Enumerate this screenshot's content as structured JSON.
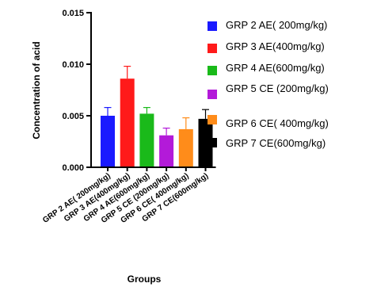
{
  "chart_data": {
    "type": "bar",
    "title": "",
    "xlabel": "Groups",
    "ylabel": "Concentration of acid",
    "ylim": [
      0,
      0.015
    ],
    "yticks": [
      "0.000",
      "0.005",
      "0.010",
      "0.015"
    ],
    "ytick_values": [
      0,
      0.005,
      0.01,
      0.015
    ],
    "categories": [
      "GRP 2 AE( 200mg/kg)",
      "GRP 3 AE(400mg/kg)",
      "GRP 4 AE(600mg/kg)",
      "GRP 5  CE (200mg/kg)",
      "GRP 6 CE( 400mg/kg)",
      "GRP 7 CE(600mg/kg)"
    ],
    "values": [
      0.005,
      0.0086,
      0.0052,
      0.0031,
      0.0037,
      0.0047
    ],
    "errors": [
      0.0008,
      0.0012,
      0.0006,
      0.0007,
      0.0011,
      0.0009
    ],
    "colors": [
      "#1a1aff",
      "#ff1a1a",
      "#1aba1a",
      "#b31ad9",
      "#ff8c1a",
      "#000000"
    ],
    "legend": {
      "position": "right",
      "entries": [
        "GRP 2 AE( 200mg/kg)",
        "GRP 3 AE(400mg/kg)",
        "GRP 4 AE(600mg/kg)",
        "GRP 5  CE (200mg/kg)",
        "GRP 6 CE( 400mg/kg)",
        "GRP 7 CE(600mg/kg)"
      ]
    },
    "grid": false
  }
}
